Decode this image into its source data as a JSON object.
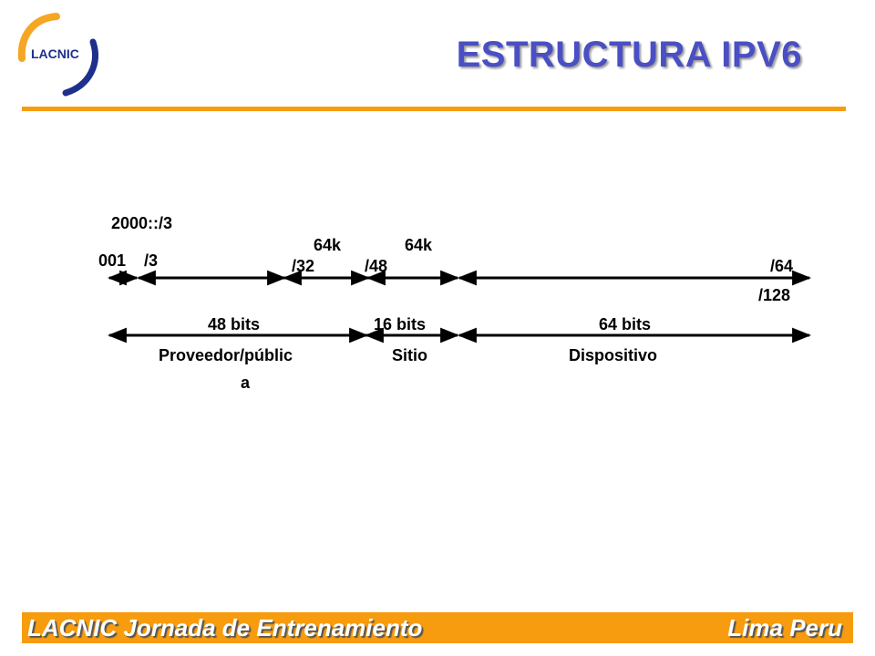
{
  "header": {
    "logo_text": "LACNIC",
    "title": "ESTRUCTURA IPV6"
  },
  "diagram": {
    "prefix_label": "2000::/3",
    "labels": {
      "bits_001": "001",
      "slash3": "/3",
      "count_64k_a": "64k",
      "count_64k_b": "64k",
      "slash32": "/32",
      "slash48": "/48",
      "slash64": "/64",
      "slash128": "/128"
    },
    "segments": [
      {
        "bits": "48 bits",
        "name": "Proveedor/públic",
        "name_cont": "a"
      },
      {
        "bits": "16 bits",
        "name": "Sitio"
      },
      {
        "bits": "64 bits",
        "name": "Dispositivo"
      }
    ]
  },
  "footer": {
    "left": "LACNIC Jornada de Entrenamiento",
    "right": "Lima Peru"
  },
  "colors": {
    "title": "#4a4fc4",
    "accent": "#f79c0e",
    "logo_blue": "#1e2f8c",
    "logo_orange": "#f5a623"
  }
}
